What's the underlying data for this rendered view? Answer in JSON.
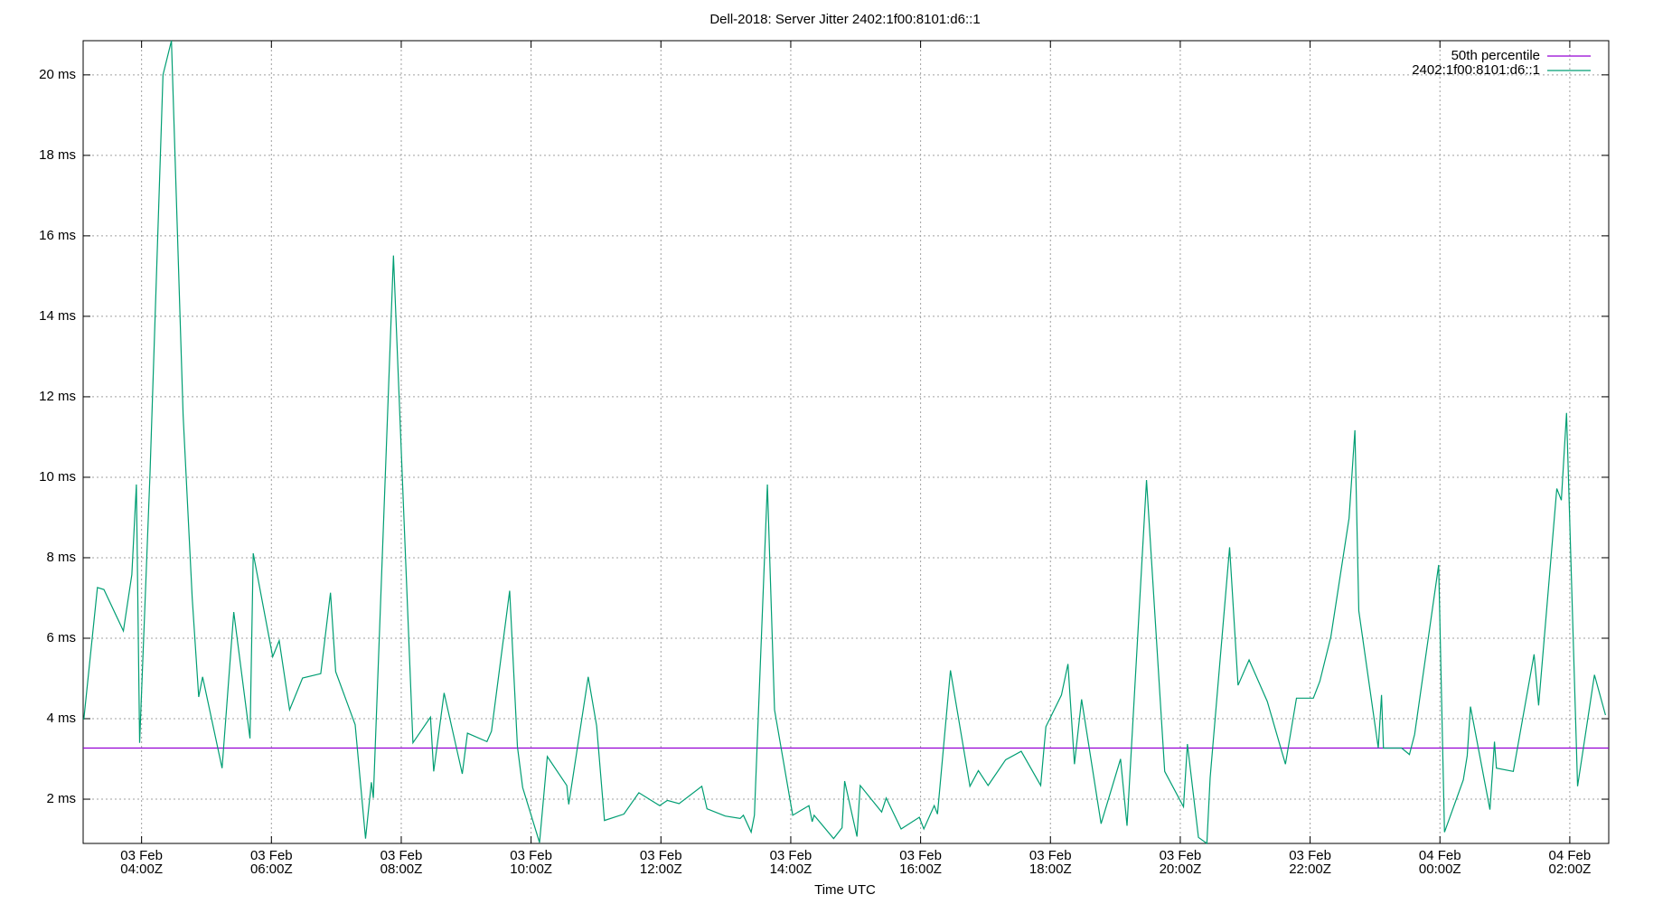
{
  "chart_data": {
    "type": "line",
    "title": "Dell-2018: Server Jitter 2402:1f00:8101:d6::1",
    "x_label": "Time UTC",
    "legend": "top-right",
    "grid": true,
    "xlim": [
      3.1,
      26.6
    ],
    "ylim": [
      0.9,
      20.85
    ],
    "xticks": [
      {
        "value": 4,
        "label": [
          "03 Feb",
          "04:00Z"
        ]
      },
      {
        "value": 6,
        "label": [
          "03 Feb",
          "06:00Z"
        ]
      },
      {
        "value": 8,
        "label": [
          "03 Feb",
          "08:00Z"
        ]
      },
      {
        "value": 10,
        "label": [
          "03 Feb",
          "10:00Z"
        ]
      },
      {
        "value": 12,
        "label": [
          "03 Feb",
          "12:00Z"
        ]
      },
      {
        "value": 14,
        "label": [
          "03 Feb",
          "14:00Z"
        ]
      },
      {
        "value": 16,
        "label": [
          "03 Feb",
          "16:00Z"
        ]
      },
      {
        "value": 18,
        "label": [
          "03 Feb",
          "18:00Z"
        ]
      },
      {
        "value": 20,
        "label": [
          "03 Feb",
          "20:00Z"
        ]
      },
      {
        "value": 22,
        "label": [
          "03 Feb",
          "22:00Z"
        ]
      },
      {
        "value": 24,
        "label": [
          "04 Feb",
          "00:00Z"
        ]
      },
      {
        "value": 26,
        "label": [
          "04 Feb",
          "02:00Z"
        ]
      }
    ],
    "yticks": [
      {
        "value": 2,
        "label": "2 ms"
      },
      {
        "value": 4,
        "label": "4 ms"
      },
      {
        "value": 6,
        "label": "6 ms"
      },
      {
        "value": 8,
        "label": "8 ms"
      },
      {
        "value": 10,
        "label": "10 ms"
      },
      {
        "value": 12,
        "label": "12 ms"
      },
      {
        "value": 14,
        "label": "14 ms"
      },
      {
        "value": 16,
        "label": "16 ms"
      },
      {
        "value": 18,
        "label": "18 ms"
      },
      {
        "value": 20,
        "label": "20 ms"
      }
    ],
    "series": [
      {
        "name": "50th percentile",
        "color": "#9400d3",
        "x": [
          3.1,
          26.6
        ],
        "values": [
          3.27,
          3.27
        ]
      },
      {
        "name": "2402:1f00:8101:d6::1",
        "color": "#009e73",
        "x": [
          3.11,
          3.32,
          3.42,
          3.72,
          3.85,
          3.92,
          3.97,
          4.13,
          4.33,
          4.46,
          4.64,
          4.78,
          4.88,
          4.94,
          5.24,
          5.42,
          5.67,
          5.72,
          6.02,
          6.12,
          6.28,
          6.48,
          6.76,
          6.91,
          6.99,
          7.29,
          7.45,
          7.54,
          7.57,
          7.88,
          8.18,
          8.45,
          8.5,
          8.66,
          8.94,
          9.02,
          9.32,
          9.39,
          9.67,
          9.79,
          9.87,
          10.13,
          10.25,
          10.55,
          10.58,
          10.88,
          11.01,
          11.13,
          11.43,
          11.66,
          11.98,
          12.1,
          12.28,
          12.63,
          12.71,
          12.99,
          13.22,
          13.27,
          13.39,
          13.44,
          13.64,
          13.75,
          14.03,
          14.28,
          14.33,
          14.36,
          14.66,
          14.79,
          14.83,
          15.02,
          15.07,
          15.4,
          15.47,
          15.7,
          15.98,
          16.05,
          16.21,
          16.26,
          16.46,
          16.76,
          16.89,
          17.04,
          17.31,
          17.55,
          17.85,
          17.93,
          18.17,
          18.27,
          18.37,
          18.48,
          18.78,
          19.08,
          19.18,
          19.48,
          19.76,
          20.05,
          20.11,
          20.28,
          20.41,
          20.46,
          20.76,
          20.89,
          21.06,
          21.34,
          21.62,
          21.79,
          22.05,
          22.15,
          22.32,
          22.6,
          22.69,
          22.75,
          23.05,
          23.1,
          23.13,
          23.41,
          23.53,
          23.61,
          23.98,
          24.07,
          24.36,
          24.42,
          24.47,
          24.77,
          24.84,
          24.87,
          25.13,
          25.45,
          25.52,
          25.8,
          25.87,
          25.95,
          26.12,
          26.38,
          26.55
        ],
        "values": [
          3.98,
          7.26,
          7.21,
          6.18,
          7.58,
          9.82,
          3.4,
          10.09,
          20.0,
          20.85,
          11.54,
          7.0,
          4.54,
          5.04,
          2.77,
          6.65,
          3.51,
          8.11,
          5.54,
          5.94,
          4.22,
          5.01,
          5.12,
          7.13,
          5.17,
          3.85,
          1.02,
          2.42,
          2.03,
          15.51,
          3.4,
          4.04,
          2.69,
          4.64,
          2.63,
          3.64,
          3.43,
          3.69,
          7.18,
          3.3,
          2.29,
          0.92,
          3.06,
          2.34,
          1.87,
          5.04,
          3.82,
          1.47,
          1.63,
          2.16,
          1.84,
          1.97,
          1.89,
          2.32,
          1.76,
          1.58,
          1.52,
          1.6,
          1.18,
          1.6,
          9.82,
          4.22,
          1.6,
          1.84,
          1.44,
          1.6,
          1.02,
          1.29,
          2.45,
          1.07,
          2.34,
          1.68,
          2.03,
          1.26,
          1.55,
          1.26,
          1.84,
          1.63,
          5.2,
          2.32,
          2.71,
          2.34,
          2.98,
          3.19,
          2.34,
          3.8,
          4.59,
          5.36,
          2.87,
          4.48,
          1.39,
          3.0,
          1.34,
          9.93,
          2.69,
          1.81,
          3.37,
          1.05,
          0.9,
          2.53,
          8.26,
          4.83,
          5.46,
          4.43,
          2.87,
          4.51,
          4.51,
          4.93,
          6.04,
          8.98,
          11.17,
          6.68,
          3.27,
          4.59,
          3.27,
          3.27,
          3.11,
          3.61,
          7.82,
          1.18,
          2.48,
          3.08,
          4.3,
          1.74,
          3.43,
          2.77,
          2.69,
          5.6,
          4.33,
          9.72,
          9.43,
          11.6,
          2.32,
          5.09,
          4.09
        ]
      }
    ]
  }
}
